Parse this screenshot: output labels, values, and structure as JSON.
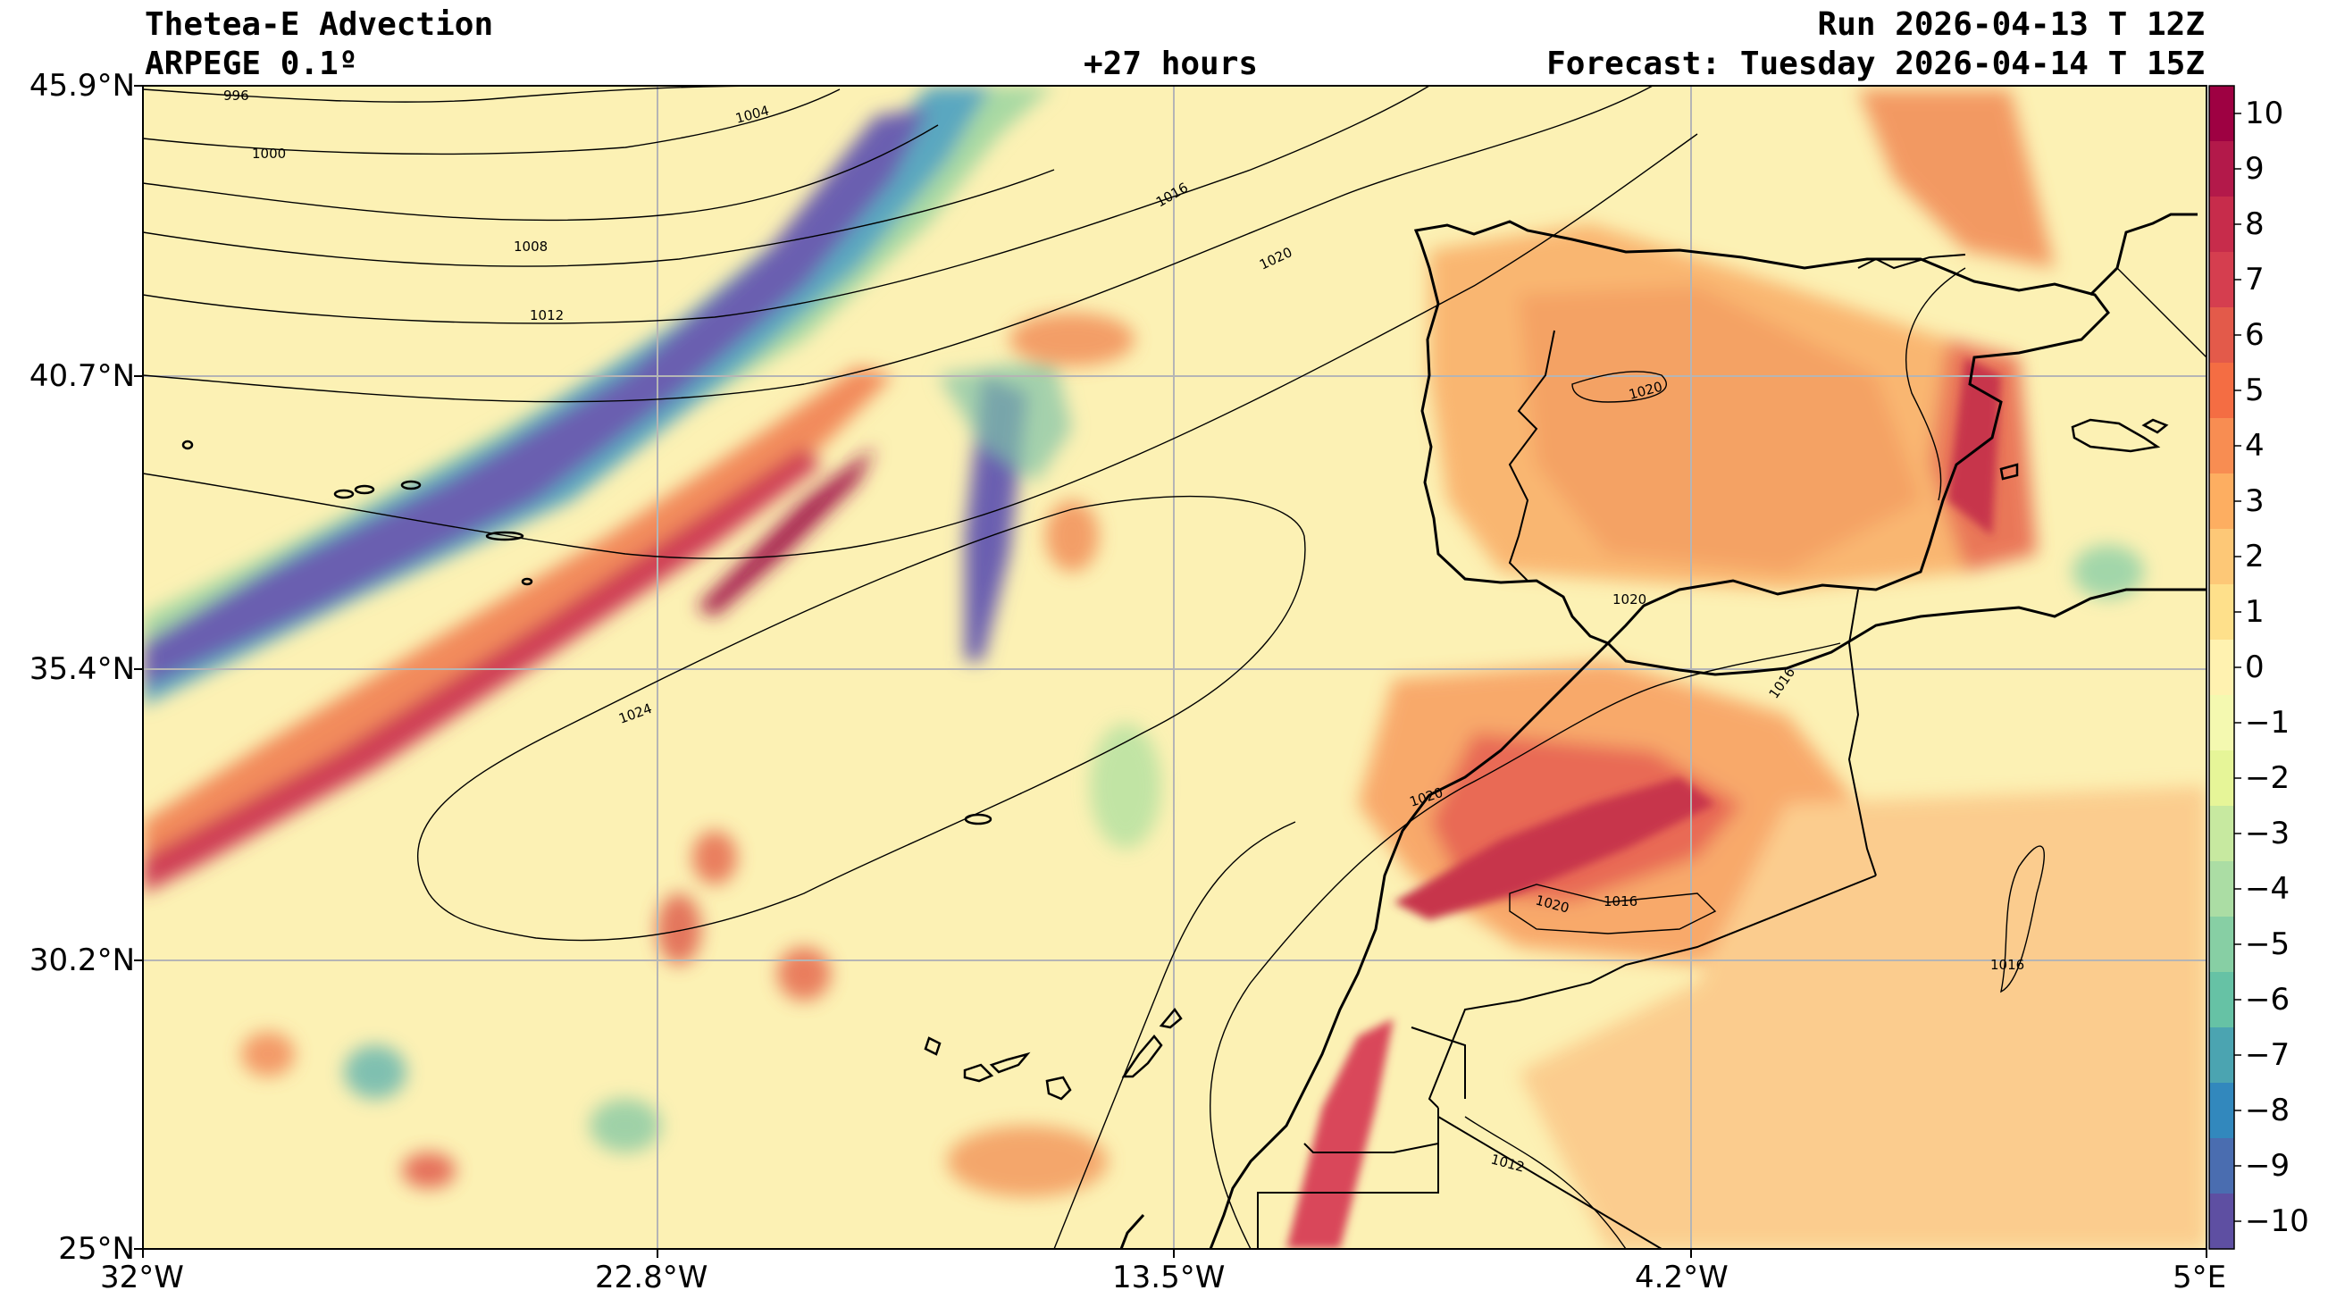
{
  "header": {
    "title": "Thetea-E Advection",
    "model": "ARPEGE 0.1º",
    "lead": "+27 hours",
    "run": "Run 2026-04-13 T 12Z",
    "forecast": "Forecast: Tuesday 2026-04-14 T 15Z"
  },
  "axes": {
    "lat_labels": [
      "45.9°N",
      "40.7°N",
      "35.4°N",
      "30.2°N",
      "25°N"
    ],
    "lon_labels": [
      "32°W",
      "22.8°W",
      "13.5°W",
      "4.2°W",
      "5°E"
    ],
    "lat_range": [
      25,
      45.9
    ],
    "lon_range": [
      -32,
      5
    ]
  },
  "colorbar": {
    "ticks": [
      "10",
      "9",
      "8",
      "7",
      "6",
      "5",
      "4",
      "3",
      "2",
      "1",
      "0",
      "−1",
      "−2",
      "−3",
      "−4",
      "−5",
      "−6",
      "−7",
      "−8",
      "−9",
      "−10"
    ],
    "colors": [
      "#9e0142",
      "#b3194a",
      "#c72c4b",
      "#d53e4f",
      "#e35a4a",
      "#f46d43",
      "#f88d52",
      "#fdae61",
      "#fdc877",
      "#fee08b",
      "#fff2b0",
      "#f4f9b0",
      "#e6f598",
      "#c7e9a0",
      "#abdda4",
      "#87cfa4",
      "#66c2a5",
      "#4ba4b1",
      "#3288bd",
      "#4a6db0",
      "#5e4fa2"
    ]
  },
  "isobars": [
    {
      "label": "996"
    },
    {
      "label": "1000"
    },
    {
      "label": "1004"
    },
    {
      "label": "1008"
    },
    {
      "label": "1012"
    },
    {
      "label": "1016"
    },
    {
      "label": "1020"
    },
    {
      "label": "1024"
    },
    {
      "label": "1020"
    },
    {
      "label": "1020"
    },
    {
      "label": "1020"
    },
    {
      "label": "1020"
    },
    {
      "label": "1016"
    },
    {
      "label": "1016"
    },
    {
      "label": "1016"
    },
    {
      "label": "1012"
    }
  ]
}
